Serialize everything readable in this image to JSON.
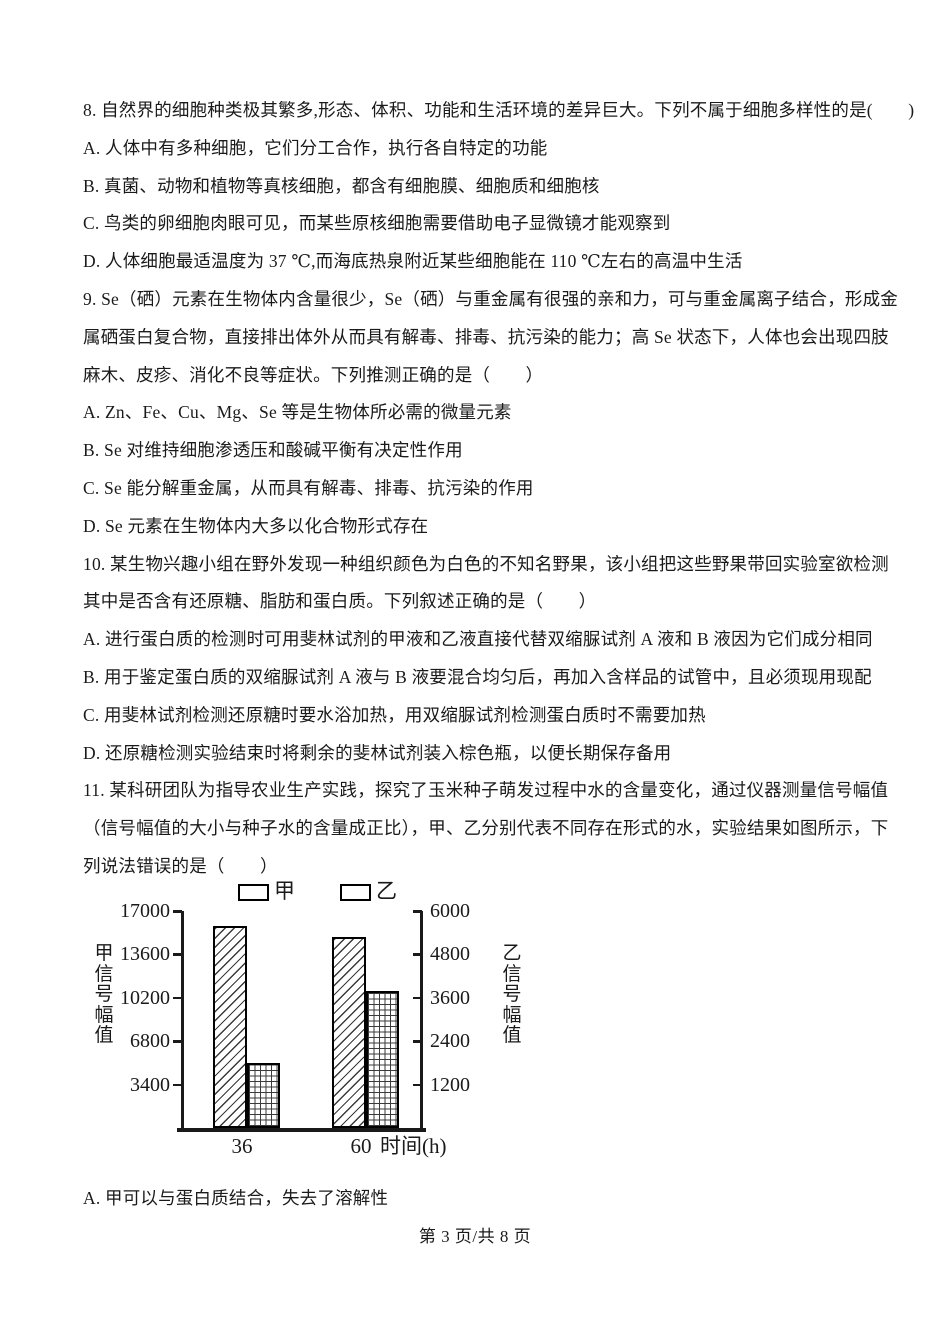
{
  "ink_color": "#1a1a1a",
  "document": {
    "lines": [
      "8. 自然界的细胞种类极其繁多,形态、体积、功能和生活环境的差异巨大。下列不属于细胞多样性的是(　　)",
      "A. 人体中有多种细胞，它们分工合作，执行各自特定的功能",
      "B. 真菌、动物和植物等真核细胞，都含有细胞膜、细胞质和细胞核",
      "C. 鸟类的卵细胞肉眼可见，而某些原核细胞需要借助电子显微镜才能观察到",
      "D. 人体细胞最适温度为 37 ℃,而海底热泉附近某些细胞能在 110 ℃左右的高温中生活",
      "9. Se（硒）元素在生物体内含量很少，Se（硒）与重金属有很强的亲和力，可与重金属离子结合，形成金",
      "属硒蛋白复合物，直接排出体外从而具有解毒、排毒、抗污染的能力；高 Se 状态下，人体也会出现四肢",
      "麻木、皮疹、消化不良等症状。下列推测正确的是（　　）",
      "A. Zn、Fe、Cu、Mg、Se 等是生物体所必需的微量元素",
      "B. Se 对维持细胞渗透压和酸碱平衡有决定性作用",
      "C. Se 能分解重金属，从而具有解毒、排毒、抗污染的作用",
      "D. Se 元素在生物体内大多以化合物形式存在",
      "10. 某生物兴趣小组在野外发现一种组织颜色为白色的不知名野果，该小组把这些野果带回实验室欲检测",
      "其中是否含有还原糖、脂肪和蛋白质。下列叙述正确的是（　　）",
      "A. 进行蛋白质的检测时可用斐林试剂的甲液和乙液直接代替双缩脲试剂 A 液和 B 液因为它们成分相同",
      "B. 用于鉴定蛋白质的双缩脲试剂 A 液与 B 液要混合均匀后，再加入含样品的试管中，且必须现用现配",
      "C. 用斐林试剂检测还原糖时要水浴加热，用双缩脲试剂检测蛋白质时不需要加热",
      "D. 还原糖检测实验结束时将剩余的斐林试剂装入棕色瓶，以便长期保存备用",
      "11. 某科研团队为指导农业生产实践，探究了玉米种子萌发过程中水的含量变化，通过仪器测量信号幅值",
      "（信号幅值的大小与种子水的含量成正比），甲、乙分别代表不同存在形式的水，实验结果如图所示，下",
      "列说法错误的是（　　）"
    ],
    "post_chart_lines": [
      "A. 甲可以与蛋白质结合，失去了溶解性"
    ],
    "footer": "第 3 页/共 8 页"
  },
  "chart_data": {
    "type": "bar",
    "title": "",
    "categories": [
      "36",
      "60"
    ],
    "xlabel": "时间(h)",
    "series": [
      {
        "name": "甲",
        "axis": "left",
        "pattern": "diagonal-hatch",
        "values": [
          15800,
          15000
        ]
      },
      {
        "name": "乙",
        "axis": "right",
        "pattern": "grid-hatch",
        "values": [
          1800,
          3800
        ]
      }
    ],
    "left_axis": {
      "label": "甲信号幅值",
      "ticks": [
        3400,
        6800,
        10200,
        13600,
        17000
      ],
      "range": [
        0,
        17000
      ]
    },
    "right_axis": {
      "label": "乙信号幅值",
      "ticks": [
        1200,
        2400,
        3600,
        4800,
        6000
      ],
      "range": [
        0,
        6000
      ]
    },
    "legend": [
      "甲",
      "乙"
    ],
    "legend_position": "top",
    "grid": false
  }
}
